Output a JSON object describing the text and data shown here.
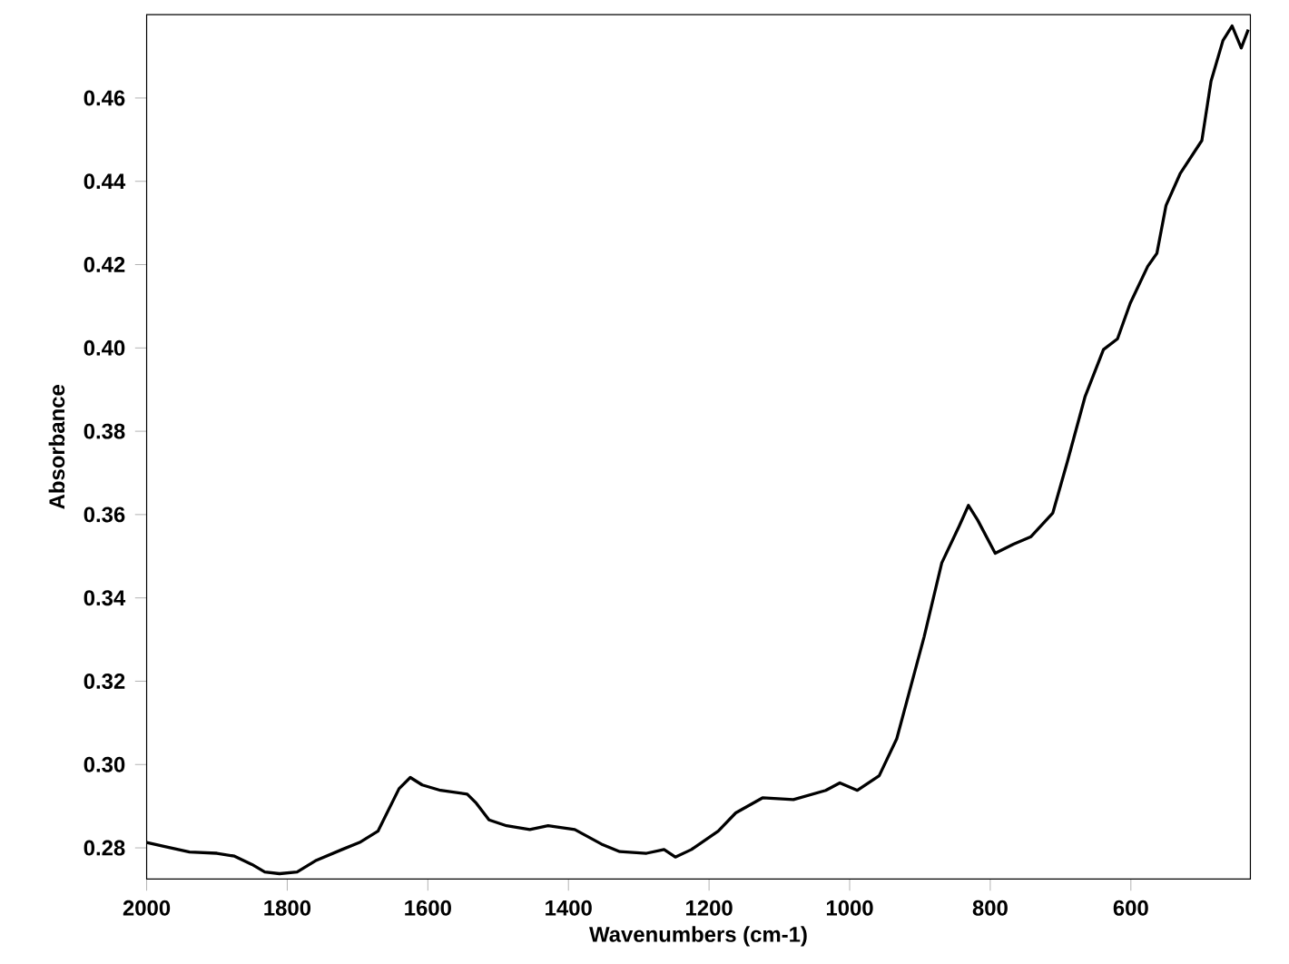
{
  "chart_data": {
    "type": "line",
    "xlabel": "Wavenumbers (cm-1)",
    "ylabel": "Absorbance",
    "xlim": [
      2000,
      430
    ],
    "ylim": [
      0.2725,
      0.48
    ],
    "xticks": [
      2000,
      1800,
      1600,
      1400,
      1200,
      1000,
      800,
      600
    ],
    "yticks": [
      0.28,
      {
        "value": 0.3,
        "label": "0.30"
      },
      0.32,
      0.34,
      0.36,
      0.38,
      {
        "value": 0.4,
        "label": "0.40"
      },
      0.42,
      0.44,
      0.46
    ],
    "grid": false,
    "marker": "none",
    "line_style": "solid",
    "series": [
      {
        "color": "#000000",
        "x": [
          2000,
          1977,
          1939,
          1900,
          1875,
          1850,
          1832,
          1811,
          1786,
          1760,
          1722,
          1697,
          1671,
          1641,
          1625,
          1608,
          1582,
          1544,
          1531,
          1513,
          1488,
          1455,
          1429,
          1391,
          1353,
          1327,
          1289,
          1264,
          1248,
          1225,
          1187,
          1162,
          1124,
          1080,
          1034,
          1014,
          989,
          958,
          933,
          894,
          869,
          844,
          831,
          818,
          793,
          767,
          742,
          711,
          690,
          665,
          639,
          619,
          601,
          576,
          563,
          550,
          530,
          499,
          486,
          469,
          456,
          443,
          433
        ],
        "values": [
          0.2813,
          0.2804,
          0.279,
          0.2787,
          0.278,
          0.276,
          0.2742,
          0.2738,
          0.2742,
          0.2769,
          0.2796,
          0.2813,
          0.284,
          0.2942,
          0.2969,
          0.2951,
          0.2938,
          0.2929,
          0.2907,
          0.2867,
          0.2853,
          0.2844,
          0.2853,
          0.2844,
          0.2809,
          0.2791,
          0.2787,
          0.2796,
          0.2778,
          0.2796,
          0.284,
          0.2884,
          0.292,
          0.2916,
          0.2938,
          0.2956,
          0.2938,
          0.2973,
          0.3062,
          0.3307,
          0.3484,
          0.3573,
          0.3622,
          0.3587,
          0.3507,
          0.3529,
          0.3547,
          0.3604,
          0.3729,
          0.3884,
          0.3996,
          0.4022,
          0.4107,
          0.4196,
          0.4227,
          0.4342,
          0.4418,
          0.4498,
          0.464,
          0.4738,
          0.4773,
          0.472,
          0.4764
        ]
      }
    ]
  }
}
